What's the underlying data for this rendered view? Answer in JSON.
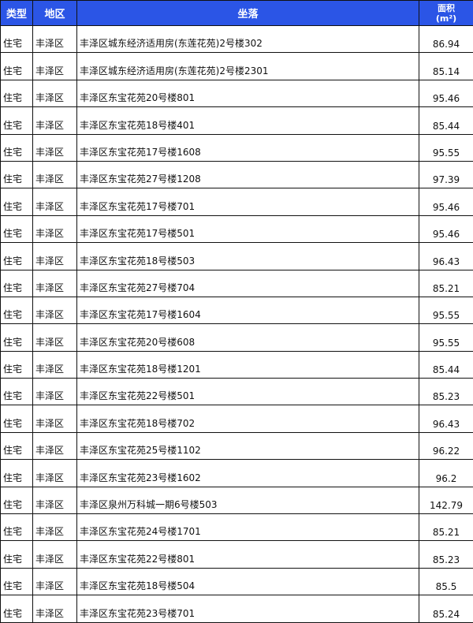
{
  "headers": {
    "type": "类型",
    "district": "地区",
    "location": "坐落",
    "area": "面积",
    "area_unit": "(m²)"
  },
  "colors": {
    "header_bg": "#2b55e6",
    "header_text": "#ffffff"
  },
  "rows": [
    {
      "type": "住宅",
      "district": "丰泽区",
      "location": "丰泽区城东经济适用房(东莲花苑)2号楼302",
      "area": "86.94"
    },
    {
      "type": "住宅",
      "district": "丰泽区",
      "location": "丰泽区城东经济适用房(东莲花苑)2号楼2301",
      "area": "85.14"
    },
    {
      "type": "住宅",
      "district": "丰泽区",
      "location": "丰泽区东宝花苑20号楼801",
      "area": "95.46"
    },
    {
      "type": "住宅",
      "district": "丰泽区",
      "location": "丰泽区东宝花苑18号楼401",
      "area": "85.44"
    },
    {
      "type": "住宅",
      "district": "丰泽区",
      "location": "丰泽区东宝花苑17号楼1608",
      "area": "95.55"
    },
    {
      "type": "住宅",
      "district": "丰泽区",
      "location": "丰泽区东宝花苑27号楼1208",
      "area": "97.39"
    },
    {
      "type": "住宅",
      "district": "丰泽区",
      "location": "丰泽区东宝花苑17号楼701",
      "area": "95.46"
    },
    {
      "type": "住宅",
      "district": "丰泽区",
      "location": "丰泽区东宝花苑17号楼501",
      "area": "95.46"
    },
    {
      "type": "住宅",
      "district": "丰泽区",
      "location": "丰泽区东宝花苑18号楼503",
      "area": "96.43"
    },
    {
      "type": "住宅",
      "district": "丰泽区",
      "location": "丰泽区东宝花苑27号楼704",
      "area": "85.21"
    },
    {
      "type": "住宅",
      "district": "丰泽区",
      "location": "丰泽区东宝花苑17号楼1604",
      "area": "95.55"
    },
    {
      "type": "住宅",
      "district": "丰泽区",
      "location": "丰泽区东宝花苑20号楼608",
      "area": "95.55"
    },
    {
      "type": "住宅",
      "district": "丰泽区",
      "location": "丰泽区东宝花苑18号楼1201",
      "area": "85.44"
    },
    {
      "type": "住宅",
      "district": "丰泽区",
      "location": "丰泽区东宝花苑22号楼501",
      "area": "85.23"
    },
    {
      "type": "住宅",
      "district": "丰泽区",
      "location": "丰泽区东宝花苑18号楼702",
      "area": "96.43"
    },
    {
      "type": "住宅",
      "district": "丰泽区",
      "location": "丰泽区东宝花苑25号楼1102",
      "area": "96.22"
    },
    {
      "type": "住宅",
      "district": "丰泽区",
      "location": "丰泽区东宝花苑23号楼1602",
      "area": "96.2"
    },
    {
      "type": "住宅",
      "district": "丰泽区",
      "location": "丰泽区泉州万科城一期6号楼503",
      "area": "142.79"
    },
    {
      "type": "住宅",
      "district": "丰泽区",
      "location": "丰泽区东宝花苑24号楼1701",
      "area": "85.21"
    },
    {
      "type": "住宅",
      "district": "丰泽区",
      "location": "丰泽区东宝花苑22号楼801",
      "area": "85.23"
    },
    {
      "type": "住宅",
      "district": "丰泽区",
      "location": "丰泽区东宝花苑18号楼504",
      "area": "85.5"
    },
    {
      "type": "住宅",
      "district": "丰泽区",
      "location": "丰泽区东宝花苑23号楼701",
      "area": "85.24"
    }
  ]
}
